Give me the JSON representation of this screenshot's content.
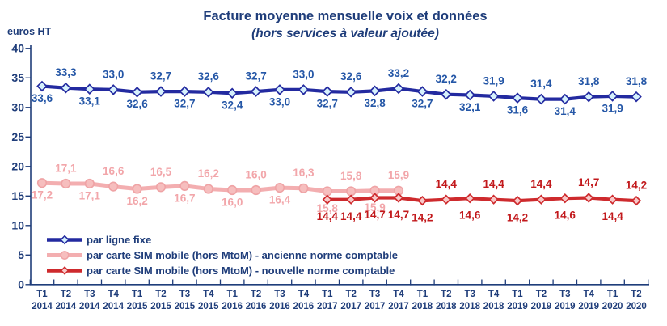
{
  "title": "Facture moyenne mensuelle voix et données",
  "subtitle": "(hors services à valeur ajoutée)",
  "y_axis_unit": "euros HT",
  "colors": {
    "axis": "#1F3D7A",
    "navy_text": "#1F3D7A",
    "fixed_line": "#232AA0",
    "fixed_marker_fill": "#D6F1FC",
    "fixed_marker_stroke": "#232AA0",
    "fixed_label": "#2557A7",
    "old_sim_line": "#F3AEB0",
    "old_sim_marker_fill": "#F6BEBE",
    "old_sim_marker_stroke": "#EFA3A5",
    "old_sim_label": "#F2A6AA",
    "new_sim_line": "#CE2A2D",
    "new_sim_marker_fill": "#F8C9C9",
    "new_sim_marker_stroke": "#CE2A2D",
    "new_sim_label": "#C2191C"
  },
  "legend": {
    "items": [
      {
        "label": "par ligne fixe",
        "series": "fixed"
      },
      {
        "label": "par carte SIM mobile (hors MtoM) - ancienne norme comptable",
        "series": "old_sim"
      },
      {
        "label": "par carte SIM mobile (hors MtoM) - nouvelle norme comptable",
        "series": "new_sim"
      }
    ]
  },
  "chart_data": {
    "type": "line",
    "title": "Facture moyenne mensuelle voix et données",
    "subtitle": "(hors services à valeur ajoutée)",
    "ylabel": "euros HT",
    "ylim": [
      0,
      40
    ],
    "y_ticks": [
      0,
      5,
      10,
      15,
      20,
      25,
      30,
      35,
      40
    ],
    "grid": false,
    "legend_position": "inside-bottom-left",
    "x_categories": [
      {
        "t": "T1",
        "year": "2014"
      },
      {
        "t": "T2",
        "year": "2014"
      },
      {
        "t": "T3",
        "year": "2014"
      },
      {
        "t": "T4",
        "year": "2014"
      },
      {
        "t": "T1",
        "year": "2015"
      },
      {
        "t": "T2",
        "year": "2015"
      },
      {
        "t": "T3",
        "year": "2015"
      },
      {
        "t": "T4",
        "year": "2015"
      },
      {
        "t": "T1",
        "year": "2016"
      },
      {
        "t": "T2",
        "year": "2016"
      },
      {
        "t": "T3",
        "year": "2016"
      },
      {
        "t": "T4",
        "year": "2016"
      },
      {
        "t": "T1",
        "year": "2017"
      },
      {
        "t": "T2",
        "year": "2017"
      },
      {
        "t": "T3",
        "year": "2017"
      },
      {
        "t": "T4",
        "year": "2017"
      },
      {
        "t": "T1",
        "year": "2018"
      },
      {
        "t": "T2",
        "year": "2018"
      },
      {
        "t": "T3",
        "year": "2018"
      },
      {
        "t": "T4",
        "year": "2018"
      },
      {
        "t": "T1",
        "year": "2019"
      },
      {
        "t": "T2",
        "year": "2019"
      },
      {
        "t": "T3",
        "year": "2019"
      },
      {
        "t": "T4",
        "year": "2019"
      },
      {
        "t": "T1",
        "year": "2020"
      },
      {
        "t": "T2",
        "year": "2020"
      }
    ],
    "series": [
      {
        "name": "par ligne fixe",
        "key": "fixed",
        "marker": "diamond",
        "values": [
          33.6,
          33.3,
          33.1,
          33.0,
          32.6,
          32.7,
          32.7,
          32.6,
          32.4,
          32.7,
          33.0,
          33.0,
          32.7,
          32.6,
          32.8,
          33.2,
          32.7,
          32.2,
          32.1,
          31.9,
          31.6,
          31.4,
          31.4,
          31.8,
          31.9,
          31.8
        ],
        "label_pos": [
          "b",
          "a",
          "b",
          "a",
          "b",
          "a",
          "b",
          "a",
          "b",
          "a",
          "b",
          "a",
          "b",
          "a",
          "b",
          "a",
          "b",
          "a",
          "b",
          "a",
          "b",
          "a",
          "b",
          "a",
          "b",
          "a"
        ]
      },
      {
        "name": "par carte SIM mobile (hors MtoM) - ancienne norme comptable",
        "key": "old_sim",
        "marker": "circle",
        "values": [
          17.2,
          17.1,
          17.1,
          16.6,
          16.2,
          16.5,
          16.7,
          16.2,
          16.0,
          16.0,
          16.4,
          16.3,
          15.8,
          15.8,
          15.9,
          15.9,
          null,
          null,
          null,
          null,
          null,
          null,
          null,
          null,
          null,
          null
        ],
        "label_pos": [
          "b",
          "a",
          "b",
          "a",
          "b",
          "a",
          "b",
          "a",
          "b",
          "a",
          "b",
          "a",
          "bf",
          "a",
          "bf",
          "a"
        ]
      },
      {
        "name": "par carte SIM mobile (hors MtoM) - nouvelle norme comptable",
        "key": "new_sim",
        "marker": "diamond",
        "values": [
          null,
          null,
          null,
          null,
          null,
          null,
          null,
          null,
          null,
          null,
          null,
          null,
          14.4,
          14.4,
          14.7,
          14.7,
          14.2,
          14.4,
          14.6,
          14.4,
          14.2,
          14.4,
          14.6,
          14.7,
          14.4,
          14.2
        ],
        "label_pos": [
          "bf",
          "bf",
          "bf",
          "bf",
          "bf",
          "a",
          "bf",
          "a",
          "bf",
          "a",
          "bf",
          "a",
          "bf",
          "a"
        ]
      }
    ]
  }
}
